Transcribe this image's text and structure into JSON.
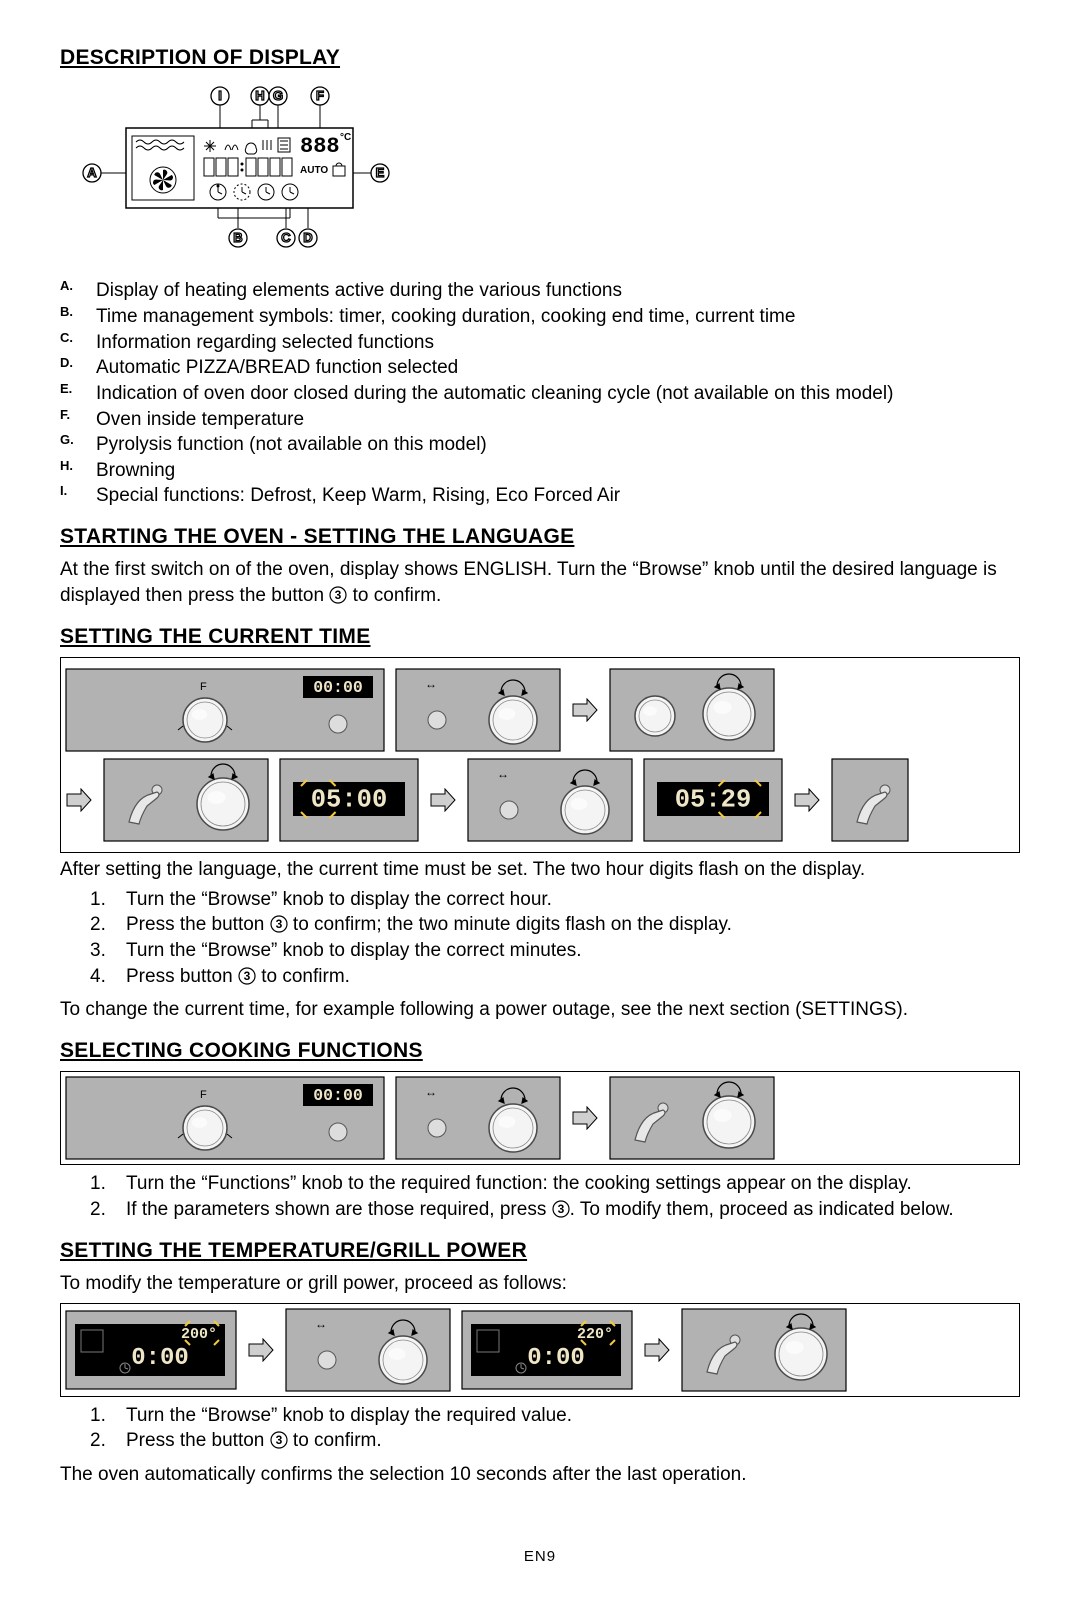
{
  "page_footer": "EN9",
  "colors": {
    "text": "#000000",
    "bg": "#ffffff",
    "panel_fill": "#b2b2b2",
    "panel_stroke": "#000000",
    "lcd_bg": "#000000",
    "lcd_text": "#efe6c8",
    "knob_fill": "#f4f4f4",
    "knob_stroke": "#4a4a4a",
    "arrow_fill": "#cfcfcf",
    "arrow_stroke": "#000000",
    "highlight": "#f5c93a"
  },
  "display_diagram": {
    "labels_top": [
      "I",
      "H",
      "G",
      "F"
    ],
    "label_left": "A",
    "label_right": "E",
    "labels_bottom": [
      "B",
      "C",
      "D"
    ],
    "temp_text": "888",
    "unit": "°C",
    "auto_text": "AUTO"
  },
  "sections": {
    "desc": {
      "title": "DESCRIPTION OF DISPLAY",
      "items": [
        {
          "l": "A.",
          "t": "Display of heating elements active during the various functions"
        },
        {
          "l": "B.",
          "t": "Time management symbols: timer, cooking duration, cooking end time, current time"
        },
        {
          "l": "C.",
          "t": "Information regarding selected functions"
        },
        {
          "l": "D.",
          "t": "Automatic PIZZA/BREAD function selected"
        },
        {
          "l": "E.",
          "t": "Indication of oven door closed during the automatic cleaning cycle (not available on this model)"
        },
        {
          "l": "F.",
          "t": "Oven inside temperature"
        },
        {
          "l": "G.",
          "t": "Pyrolysis function (not available on this model)"
        },
        {
          "l": "H.",
          "t": "Browning"
        },
        {
          "l": "I.",
          "t": "Special functions: Defrost, Keep Warm, Rising, Eco Forced Air"
        }
      ]
    },
    "start": {
      "title": "STARTING THE OVEN - SETTING THE LANGUAGE",
      "body": "At the first switch on of the oven, display shows ENGLISH. Turn the “Browse” knob until the desired language is displayed then press the button {btn3} to confirm."
    },
    "time": {
      "title": "SETTING THE CURRENT TIME",
      "intro": "After setting the language, the current time must be set. The two hour digits flash on the display.",
      "steps": [
        "Turn the “Browse” knob to display the correct hour.",
        "Press the button {btn3} to confirm; the two minute digits flash on the display.",
        "Turn the “Browse” knob to display the correct minutes.",
        "Press button {btn3} to confirm."
      ],
      "outro": "To change the current time, for example following a power outage, see the next section (SETTINGS).",
      "panels": {
        "row1": [
          {
            "type": "panel_F_lcd",
            "lcd": "00:00"
          },
          {
            "type": "panel_btn_knob_arrows"
          },
          {
            "type": "arrow"
          },
          {
            "type": "panel_knob_knob_arrows"
          }
        ],
        "row2": [
          {
            "type": "arrow"
          },
          {
            "type": "panel_press_knob_arrows"
          },
          {
            "type": "panel_lcd_only",
            "lcd": "05:00",
            "hi": "hours"
          },
          {
            "type": "arrow"
          },
          {
            "type": "panel_btn_knob_arrows"
          },
          {
            "type": "panel_lcd_only",
            "lcd": "05:29",
            "hi": "mins"
          },
          {
            "type": "arrow"
          },
          {
            "type": "panel_press_only"
          }
        ]
      }
    },
    "cook": {
      "title": "SELECTING COOKING FUNCTIONS",
      "steps": [
        "Turn the “Functions” knob to the required function: the cooking settings appear on the display.",
        "If the parameters shown are those required, press {btn3}. To modify them, proceed as indicated below."
      ],
      "panels": [
        {
          "type": "panel_F_lcd",
          "lcd": "00:00"
        },
        {
          "type": "panel_btn_knob_arrows"
        },
        {
          "type": "arrow"
        },
        {
          "type": "panel_press_knob_arrows"
        }
      ]
    },
    "temp": {
      "title": "SETTING THE TEMPERATURE/GRILL POWER",
      "intro": "To modify the temperature or grill power, proceed as follows:",
      "steps": [
        "Turn the “Browse” knob to display the required value.",
        "Press the button {btn3} to confirm."
      ],
      "outro": "The oven automatically confirms the selection 10 seconds after the last operation.",
      "panels": [
        {
          "type": "panel_temp_lcd",
          "temp": "200",
          "time": "0:00"
        },
        {
          "type": "arrow"
        },
        {
          "type": "panel_btn_knob_arrows"
        },
        {
          "type": "panel_temp_lcd",
          "temp": "220",
          "time": "0:00"
        },
        {
          "type": "arrow"
        },
        {
          "type": "panel_press_knob_arrows"
        }
      ]
    }
  }
}
